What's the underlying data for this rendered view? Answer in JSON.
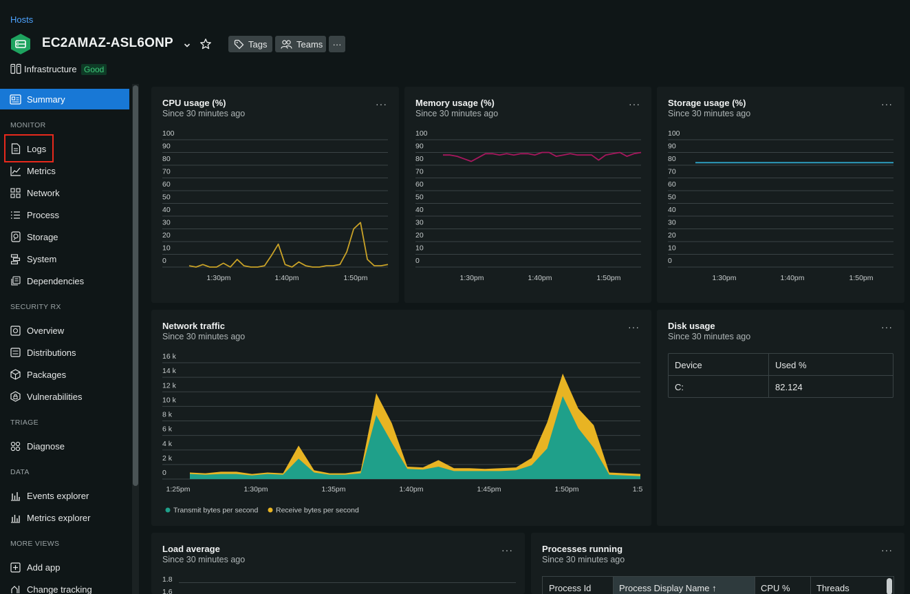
{
  "header": {
    "breadcrumb": "Hosts",
    "entity_name": "EC2AMAZ-ASL6ONP",
    "tags_label": "Tags",
    "teams_label": "Teams",
    "more_label": "···",
    "domain_label": "Infrastructure",
    "status_label": "Good"
  },
  "sidebar": {
    "summary": "Summary",
    "sections": {
      "monitor": "MONITOR",
      "security": "SECURITY RX",
      "triage": "TRIAGE",
      "data": "DATA",
      "more": "MORE VIEWS"
    },
    "items": {
      "logs": "Logs",
      "metrics": "Metrics",
      "network": "Network",
      "process": "Process",
      "storage": "Storage",
      "system": "System",
      "dependencies": "Dependencies",
      "overview": "Overview",
      "distributions": "Distributions",
      "packages": "Packages",
      "vulnerabilities": "Vulnerabilities",
      "diagnose": "Diagnose",
      "events_explorer": "Events explorer",
      "metrics_explorer": "Metrics explorer",
      "add_app": "Add app",
      "change_tracking": "Change tracking"
    }
  },
  "cards": {
    "cpu": {
      "title": "CPU usage (%)",
      "subtitle": "Since 30 minutes ago"
    },
    "memory": {
      "title": "Memory usage (%)",
      "subtitle": "Since 30 minutes ago"
    },
    "storage": {
      "title": "Storage usage (%)",
      "subtitle": "Since 30 minutes ago"
    },
    "network": {
      "title": "Network traffic",
      "subtitle": "Since 30 minutes ago"
    },
    "disk": {
      "title": "Disk usage",
      "subtitle": "Since 30 minutes ago"
    },
    "load": {
      "title": "Load average",
      "subtitle": "Since 30 minutes ago"
    },
    "processes": {
      "title": "Processes running",
      "subtitle": "Since 30 minutes ago"
    },
    "menu": "···"
  },
  "disk_table": {
    "headers": [
      "Device",
      "Used %"
    ],
    "rows": [
      [
        "C:",
        "82.124"
      ]
    ]
  },
  "process_table": {
    "headers": [
      "Process Id",
      "Process Display Name ↑",
      "CPU %",
      "Threads"
    ]
  },
  "colors": {
    "cpu": "#c9a227",
    "memory": "#a8175e",
    "storage": "#2fa6c9",
    "transmit": "#1fa08a",
    "receive": "#e8b423",
    "accent": "#1878d6"
  },
  "chart_data": [
    {
      "id": "cpu",
      "type": "line",
      "ylim": [
        0,
        100
      ],
      "yticks": [
        "100",
        "90",
        "80",
        "70",
        "60",
        "50",
        "40",
        "30",
        "20",
        "10",
        "0"
      ],
      "xticks": [
        "1:30pm",
        "1:40pm",
        "1:50pm"
      ],
      "series": [
        {
          "values": [
            1,
            0,
            2,
            0,
            0,
            3,
            0,
            6,
            1,
            0,
            0,
            1,
            9,
            18,
            2,
            0,
            4,
            1,
            0,
            0,
            1,
            1,
            2,
            12,
            30,
            35,
            6,
            1,
            1,
            2
          ]
        }
      ]
    },
    {
      "id": "memory",
      "type": "line",
      "ylim": [
        0,
        100
      ],
      "yticks": [
        "100",
        "90",
        "80",
        "70",
        "60",
        "50",
        "40",
        "30",
        "20",
        "10",
        "0"
      ],
      "xticks": [
        "1:30pm",
        "1:40pm",
        "1:50pm"
      ],
      "series": [
        {
          "values": [
            88,
            88,
            87,
            85,
            83,
            86,
            89,
            89,
            88,
            89,
            88,
            89,
            89,
            88,
            90,
            90,
            87,
            88,
            89,
            88,
            88,
            88,
            84,
            88,
            89,
            90,
            87,
            89,
            90
          ]
        }
      ]
    },
    {
      "id": "storage",
      "type": "line",
      "ylim": [
        0,
        100
      ],
      "yticks": [
        "100",
        "90",
        "80",
        "70",
        "60",
        "50",
        "40",
        "30",
        "20",
        "10",
        "0"
      ],
      "xticks": [
        "1:30pm",
        "1:40pm",
        "1:50pm"
      ],
      "series": [
        {
          "values": [
            82,
            82
          ]
        }
      ]
    },
    {
      "id": "network",
      "type": "area",
      "ylim": [
        0,
        16000
      ],
      "yticks": [
        "16 k",
        "14 k",
        "12 k",
        "10 k",
        "8 k",
        "6 k",
        "4 k",
        "2 k",
        "0"
      ],
      "xticks": [
        "1:25pm",
        "1:30pm",
        "1:35pm",
        "1:40pm",
        "1:45pm",
        "1:50pm",
        "1:5"
      ],
      "series": [
        {
          "name": "Transmit bytes per second",
          "values": [
            700,
            600,
            700,
            700,
            500,
            700,
            600,
            2800,
            900,
            600,
            600,
            800,
            8800,
            5000,
            1400,
            1300,
            1700,
            1100,
            1100,
            1100,
            1100,
            1200,
            1900,
            4200,
            11400,
            7000,
            4300,
            600,
            500,
            400
          ]
        },
        {
          "name": "Receive bytes per second",
          "values": [
            900,
            800,
            1000,
            1000,
            700,
            900,
            800,
            4600,
            1200,
            800,
            800,
            1100,
            11800,
            7700,
            1700,
            1600,
            2600,
            1500,
            1500,
            1400,
            1500,
            1600,
            2900,
            7800,
            14500,
            9700,
            7400,
            900,
            800,
            700
          ]
        }
      ]
    }
  ]
}
